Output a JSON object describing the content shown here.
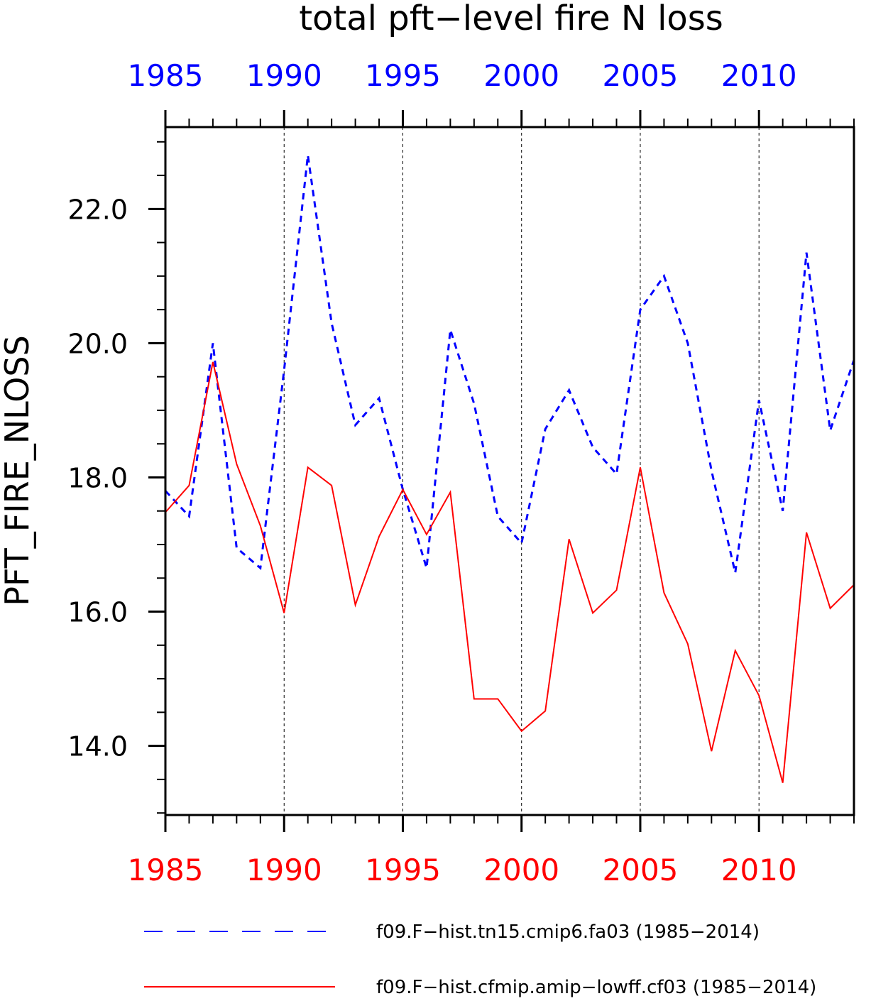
{
  "chart_data": {
    "type": "line",
    "title": "total pft−level fire N loss",
    "ylabel": "PFT_FIRE_NLOSS",
    "xlim": [
      1985,
      2014
    ],
    "ylim": [
      12.97,
      23.22
    ],
    "x_ticks_major": [
      1985,
      1990,
      1995,
      2000,
      2005,
      2010
    ],
    "x_tick_labels": [
      "1985",
      "1990",
      "1995",
      "2000",
      "2005",
      "2010"
    ],
    "y_ticks_major": [
      14.0,
      16.0,
      18.0,
      20.0,
      22.0
    ],
    "y_tick_labels": [
      "14.0",
      "16.0",
      "18.0",
      "20.0",
      "22.0"
    ],
    "vertical_gridlines": "dashed at major x ticks",
    "top_axis_color": "#0000ff",
    "bottom_axis_color": "#ff0000",
    "legend_position": "bottom",
    "x": [
      1985,
      1986,
      1987,
      1988,
      1989,
      1990,
      1991,
      1992,
      1993,
      1994,
      1995,
      1996,
      1997,
      1998,
      1999,
      2000,
      2001,
      2002,
      2003,
      2004,
      2005,
      2006,
      2007,
      2008,
      2009,
      2010,
      2011,
      2012,
      2013,
      2014
    ],
    "series": [
      {
        "name": "f09.F−hist.tn15.cmip6.fa03 (1985−2014)",
        "color": "#0000ff",
        "style": "dashed",
        "values": [
          17.8,
          17.42,
          20.0,
          16.95,
          16.65,
          19.6,
          22.8,
          20.3,
          18.78,
          19.18,
          17.82,
          16.65,
          20.2,
          19.1,
          17.42,
          17.02,
          18.72,
          19.3,
          18.45,
          18.05,
          20.5,
          21.0,
          20.0,
          18.1,
          16.58,
          19.15,
          17.5,
          21.35,
          18.7,
          19.75
        ]
      },
      {
        "name": "f09.F−hist.cfmip.amip−lowff.cf03 (1985−2014)",
        "color": "#ff0000",
        "style": "solid",
        "values": [
          17.48,
          17.88,
          19.72,
          18.2,
          17.28,
          15.98,
          18.15,
          17.88,
          16.1,
          17.12,
          17.82,
          17.15,
          17.78,
          14.7,
          14.7,
          14.22,
          14.52,
          17.08,
          15.98,
          16.32,
          18.15,
          16.28,
          15.52,
          13.92,
          15.42,
          14.75,
          13.45,
          17.18,
          16.05,
          16.4
        ]
      }
    ]
  }
}
